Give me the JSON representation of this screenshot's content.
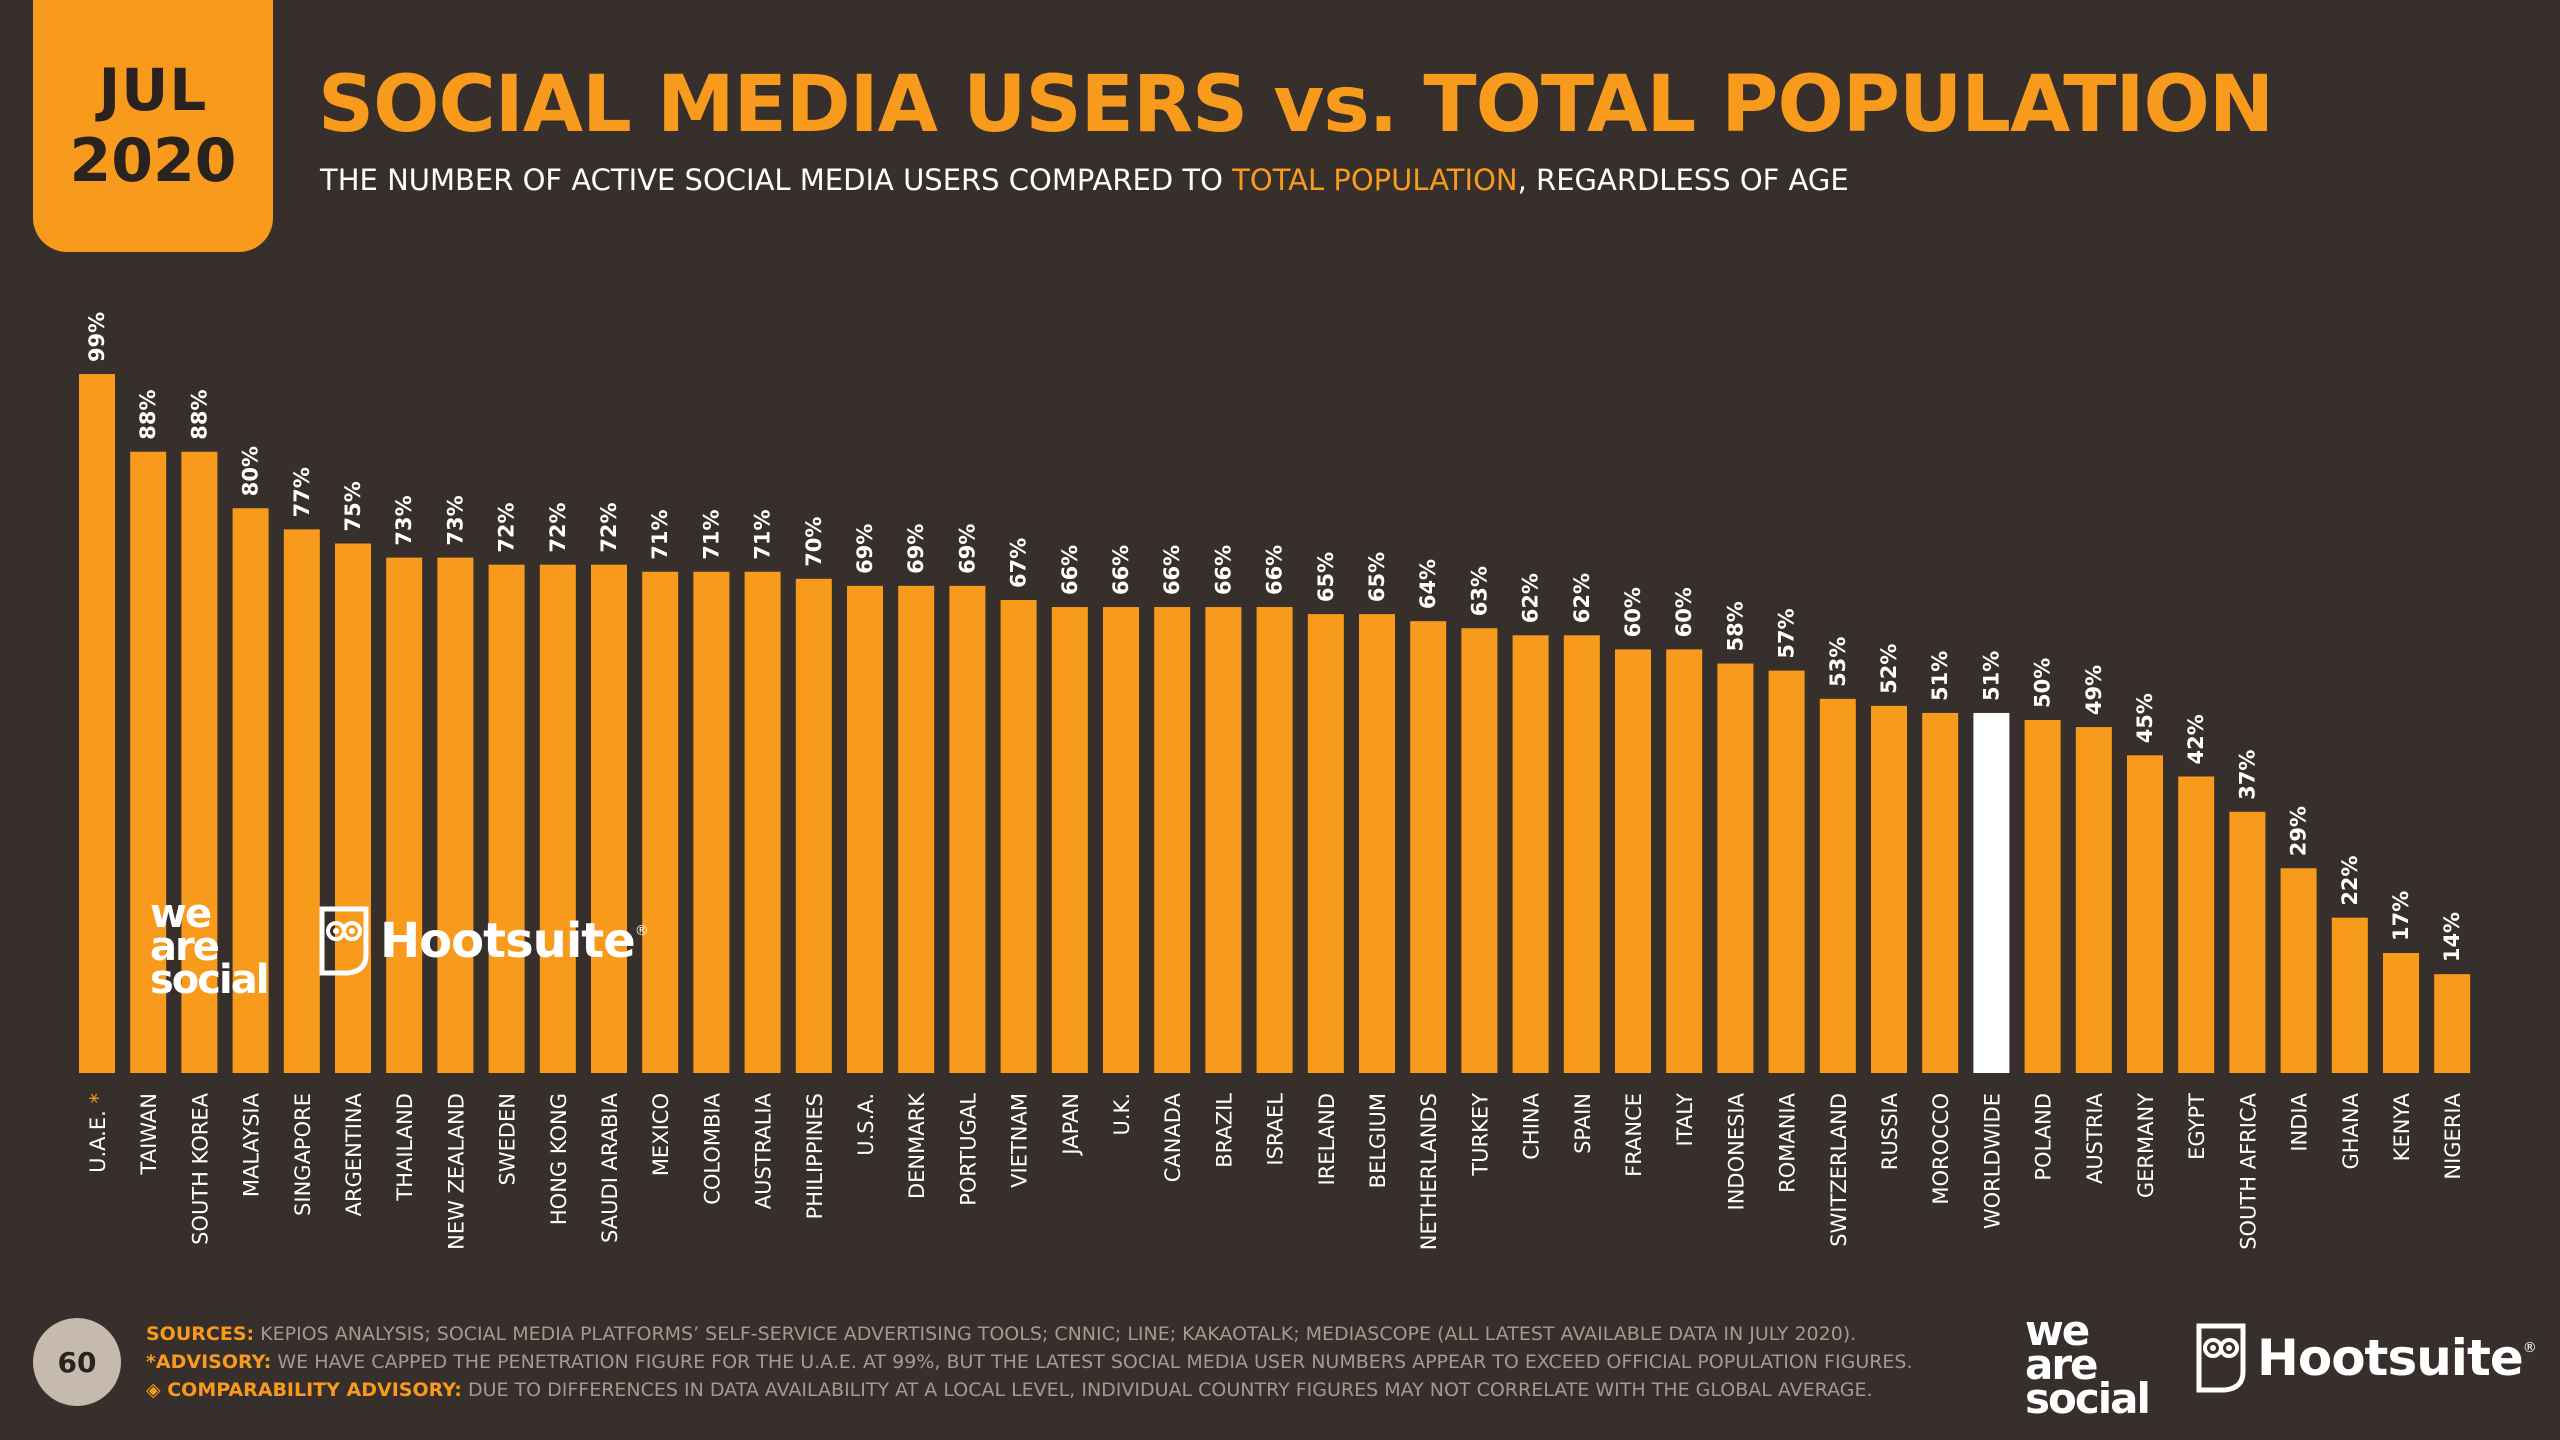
{
  "header": {
    "month": "JUL",
    "year": "2020",
    "title": "SOCIAL MEDIA USERS vs. TOTAL POPULATION",
    "subtitle_pre": "THE NUMBER OF ACTIVE SOCIAL MEDIA USERS COMPARED TO ",
    "subtitle_highlight": "TOTAL POPULATION",
    "subtitle_post": ", REGARDLESS OF AGE"
  },
  "colors": {
    "background": "#362f2b",
    "accent": "#f89a1c",
    "highlight_bar": "#ffffff"
  },
  "logos": {
    "we_are_social": [
      "we",
      "are",
      "social"
    ],
    "hootsuite": "Hootsuite",
    "registered": "®"
  },
  "footer": {
    "page_number": "60",
    "sources_label": "SOURCES:",
    "sources_text": " KEPIOS ANALYSIS; SOCIAL MEDIA PLATFORMS’ SELF-SERVICE ADVERTISING TOOLS; CNNIC; LINE; KAKAOTALK; MEDIASCOPE (ALL LATEST AVAILABLE DATA IN JULY 2020).",
    "advisory_label": "*ADVISORY:",
    "advisory_text": " WE HAVE CAPPED THE PENETRATION FIGURE FOR THE U.A.E. AT 99%, BUT THE LATEST SOCIAL MEDIA USER NUMBERS APPEAR TO EXCEED OFFICIAL POPULATION FIGURES.",
    "comparability_label": "◈ COMPARABILITY ADVISORY:",
    "comparability_text": " DUE TO DIFFERENCES IN DATA AVAILABILITY AT A LOCAL LEVEL, INDIVIDUAL COUNTRY FIGURES MAY NOT CORRELATE WITH THE GLOBAL AVERAGE."
  },
  "chart_data": {
    "type": "bar",
    "title": "SOCIAL MEDIA USERS vs. TOTAL POPULATION",
    "ylim": [
      0,
      100
    ],
    "value_suffix": "%",
    "categories": [
      "U.A.E.",
      "TAIWAN",
      "SOUTH KOREA",
      "MALAYSIA",
      "SINGAPORE",
      "ARGENTINA",
      "THAILAND",
      "NEW ZEALAND",
      "SWEDEN",
      "HONG KONG",
      "SAUDI ARABIA",
      "MEXICO",
      "COLOMBIA",
      "AUSTRALIA",
      "PHILIPPINES",
      "U.S.A.",
      "DENMARK",
      "PORTUGAL",
      "VIETNAM",
      "JAPAN",
      "U.K.",
      "CANADA",
      "BRAZIL",
      "ISRAEL",
      "IRELAND",
      "BELGIUM",
      "NETHERLANDS",
      "TURKEY",
      "CHINA",
      "SPAIN",
      "FRANCE",
      "ITALY",
      "INDONESIA",
      "ROMANIA",
      "SWITZERLAND",
      "RUSSIA",
      "MOROCCO",
      "WORLDWIDE",
      "POLAND",
      "AUSTRIA",
      "GERMANY",
      "EGYPT",
      "SOUTH AFRICA",
      "INDIA",
      "GHANA",
      "KENYA",
      "NIGERIA"
    ],
    "values": [
      99,
      88,
      88,
      80,
      77,
      75,
      73,
      73,
      72,
      72,
      72,
      71,
      71,
      71,
      70,
      69,
      69,
      69,
      67,
      66,
      66,
      66,
      66,
      66,
      65,
      65,
      64,
      63,
      62,
      62,
      60,
      60,
      58,
      57,
      53,
      52,
      51,
      51,
      50,
      49,
      45,
      42,
      37,
      29,
      22,
      17,
      14
    ],
    "highlight": "WORLDWIDE",
    "asterisk_category": "U.A.E.",
    "asterisk": "*"
  }
}
